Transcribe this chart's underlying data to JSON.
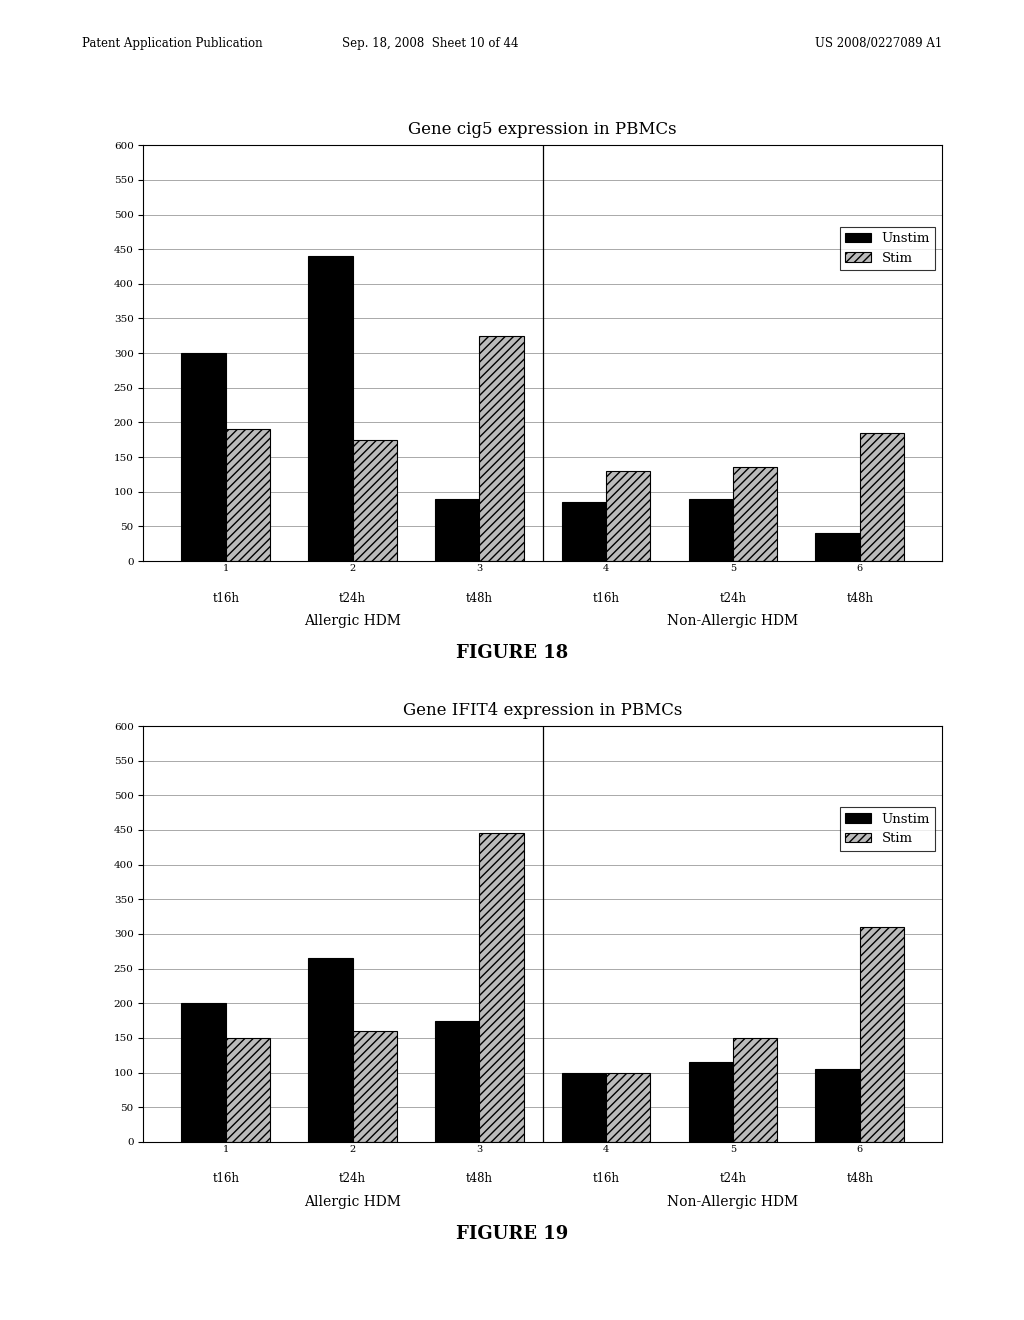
{
  "fig18": {
    "title": "Gene cig5 expression in PBMCs",
    "figure_label": "FIGURE 18",
    "ylim": [
      0,
      600
    ],
    "yticks": [
      0,
      50,
      100,
      150,
      200,
      250,
      300,
      350,
      400,
      450,
      500,
      550,
      600
    ],
    "ytick_labels": [
      "0",
      "50",
      "100",
      "150",
      "200",
      "250",
      "300",
      "350",
      "400",
      "450",
      "500",
      "550",
      "600"
    ],
    "time_labels": [
      "t16h",
      "t24h",
      "t48h",
      "t16h",
      "t24h",
      "t48h"
    ],
    "group_numbers": [
      "1",
      "2",
      "3",
      "4",
      "5",
      "6"
    ],
    "unstim": [
      300,
      440,
      90,
      85,
      90,
      40
    ],
    "stim": [
      190,
      175,
      325,
      130,
      135,
      185
    ],
    "allergic_label": "Allergic HDM",
    "nonallergic_label": "Non-Allergic HDM",
    "legend_labels": [
      "Unstim",
      "Stim"
    ],
    "unstim_color": "#000000",
    "stim_hatch": "////"
  },
  "fig19": {
    "title": "Gene IFIT4 expression in PBMCs",
    "figure_label": "FIGURE 19",
    "ylim": [
      0,
      600
    ],
    "yticks": [
      0,
      50,
      100,
      150,
      200,
      250,
      300,
      350,
      400,
      450,
      500,
      550,
      600
    ],
    "ytick_labels": [
      "0",
      "50",
      "100",
      "150",
      "200",
      "250",
      "300",
      "350",
      "400",
      "450",
      "500",
      "550",
      "600"
    ],
    "time_labels": [
      "t16h",
      "t24h",
      "t48h",
      "t16h",
      "t24h",
      "t48h"
    ],
    "group_numbers": [
      "1",
      "2",
      "3",
      "4",
      "5",
      "6"
    ],
    "unstim": [
      200,
      265,
      175,
      100,
      115,
      105
    ],
    "stim": [
      150,
      160,
      445,
      100,
      150,
      310
    ],
    "allergic_label": "Allergic HDM",
    "nonallergic_label": "Non-Allergic HDM",
    "legend_labels": [
      "Unstim",
      "Stim"
    ],
    "unstim_color": "#000000",
    "stim_hatch": "////"
  },
  "header_left": "Patent Application Publication",
  "header_mid": "Sep. 18, 2008  Sheet 10 of 44",
  "header_right": "US 2008/0227089 A1",
  "bg_color": "#ffffff",
  "font_family": "DejaVu Serif"
}
